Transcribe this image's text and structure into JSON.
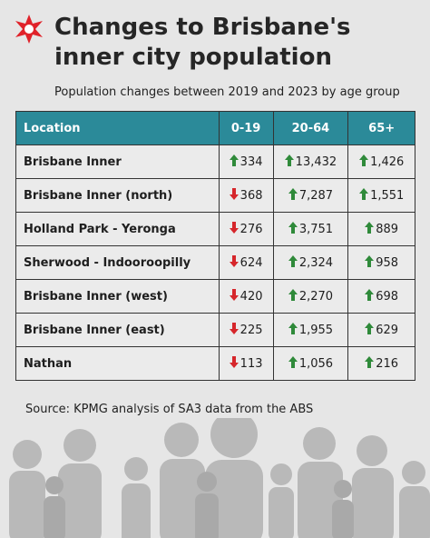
{
  "header": {
    "title_lines": [
      "Changes to Brisbane's",
      "inner city population"
    ],
    "subtitle": "Population changes between 2019 and 2023 by age group"
  },
  "table": {
    "columns": [
      "Location",
      "0-19",
      "20-64",
      "65+"
    ],
    "rows": [
      {
        "location": "Brisbane Inner",
        "cells": [
          {
            "text": "334",
            "direction": "up"
          },
          {
            "text": "13,432",
            "direction": "up"
          },
          {
            "text": "1,426",
            "direction": "up"
          }
        ]
      },
      {
        "location": "Brisbane Inner (north)",
        "cells": [
          {
            "text": "368",
            "direction": "down"
          },
          {
            "text": "7,287",
            "direction": "up"
          },
          {
            "text": "1,551",
            "direction": "up"
          }
        ]
      },
      {
        "location": "Holland Park - Yeronga",
        "cells": [
          {
            "text": "276",
            "direction": "down"
          },
          {
            "text": "3,751",
            "direction": "up"
          },
          {
            "text": "889",
            "direction": "up"
          }
        ]
      },
      {
        "location": "Sherwood - Indooroopilly",
        "cells": [
          {
            "text": "624",
            "direction": "down"
          },
          {
            "text": "2,324",
            "direction": "up"
          },
          {
            "text": "958",
            "direction": "up"
          }
        ]
      },
      {
        "location": "Brisbane Inner (west)",
        "cells": [
          {
            "text": "420",
            "direction": "down"
          },
          {
            "text": "2,270",
            "direction": "up"
          },
          {
            "text": "698",
            "direction": "up"
          }
        ]
      },
      {
        "location": "Brisbane Inner (east)",
        "cells": [
          {
            "text": "225",
            "direction": "down"
          },
          {
            "text": "1,955",
            "direction": "up"
          },
          {
            "text": "629",
            "direction": "up"
          }
        ]
      },
      {
        "location": "Nathan",
        "cells": [
          {
            "text": "113",
            "direction": "down"
          },
          {
            "text": "1,056",
            "direction": "up"
          },
          {
            "text": "216",
            "direction": "up"
          }
        ]
      }
    ]
  },
  "footer": {
    "source": "Source: KPMG analysis of SA3 data from the ABS"
  }
}
